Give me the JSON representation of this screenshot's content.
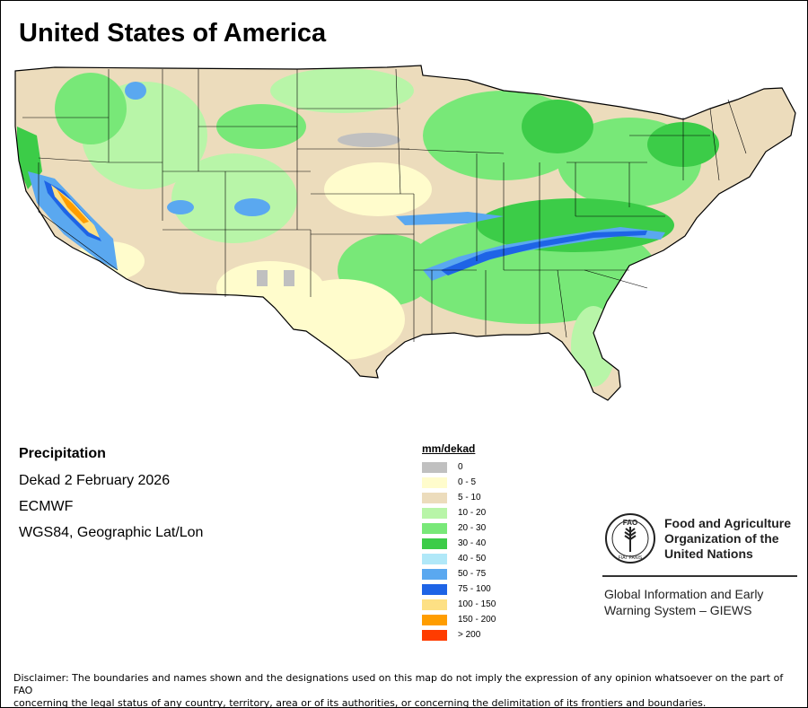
{
  "title": "United States of America",
  "info": {
    "product": "Precipitation",
    "period": "Dekad 2 February 2026",
    "model": "ECMWF",
    "projection": "WGS84, Geographic Lat/Lon"
  },
  "legend": {
    "unit": "mm/dekad",
    "classes": [
      {
        "label": "0",
        "color": "#c0c0c0"
      },
      {
        "label": "0 - 5",
        "color": "#fffccc"
      },
      {
        "label": "5 - 10",
        "color": "#ecdcbc"
      },
      {
        "label": "10 - 20",
        "color": "#b8f5a8"
      },
      {
        "label": "20 - 30",
        "color": "#78e878"
      },
      {
        "label": "30 - 40",
        "color": "#3ccc48"
      },
      {
        "label": "40 - 50",
        "color": "#b0e8f8"
      },
      {
        "label": "50 - 75",
        "color": "#5aa8f0"
      },
      {
        "label": "75 - 100",
        "color": "#1e64e6"
      },
      {
        "label": "100 - 150",
        "color": "#fde084"
      },
      {
        "label": "150 - 200",
        "color": "#ff9d00"
      },
      {
        "label": "> 200",
        "color": "#ff3c00"
      }
    ]
  },
  "fao": {
    "org_line1": "Food and Agriculture",
    "org_line2": "Organization of the",
    "org_line3": "United Nations",
    "logo_text": "FAO",
    "logo_motto": "FIAT PANIS",
    "giews_line1": "Global Information and Early",
    "giews_line2": "Warning System – GIEWS"
  },
  "disclaimer_line1": "Disclaimer: The boundaries and names shown and the designations used on this map do not imply the expression of any opinion whatsoever on the part of FAO",
  "disclaimer_line2": "concerning the legal status of any country, territory, area or of its authorities, or concerning the delimitation of its frontiers and boundaries."
}
